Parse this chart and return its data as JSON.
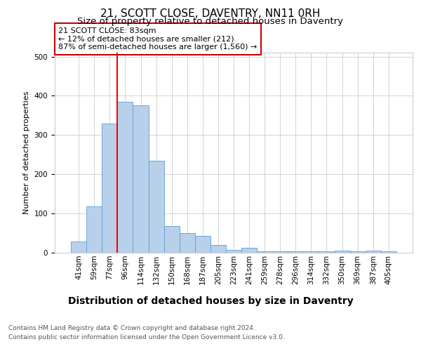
{
  "title": "21, SCOTT CLOSE, DAVENTRY, NN11 0RH",
  "subtitle": "Size of property relative to detached houses in Daventry",
  "xlabel": "Distribution of detached houses by size in Daventry",
  "ylabel": "Number of detached properties",
  "categories": [
    "41sqm",
    "59sqm",
    "77sqm",
    "96sqm",
    "114sqm",
    "132sqm",
    "150sqm",
    "168sqm",
    "187sqm",
    "205sqm",
    "223sqm",
    "241sqm",
    "259sqm",
    "278sqm",
    "296sqm",
    "314sqm",
    "332sqm",
    "350sqm",
    "369sqm",
    "387sqm",
    "405sqm"
  ],
  "values": [
    28,
    118,
    330,
    385,
    375,
    235,
    68,
    50,
    43,
    20,
    8,
    13,
    3,
    3,
    3,
    3,
    3,
    5,
    3,
    6,
    3
  ],
  "bar_color": "#b8d0ea",
  "bar_edge_color": "#5a9fd4",
  "vline_x_idx": 2.5,
  "annotation_text": "21 SCOTT CLOSE: 83sqm\n← 12% of detached houses are smaller (212)\n87% of semi-detached houses are larger (1,560) →",
  "annotation_box_color": "#ffffff",
  "annotation_box_edge": "#cc0000",
  "ylim": [
    0,
    510
  ],
  "footer_line1": "Contains HM Land Registry data © Crown copyright and database right 2024.",
  "footer_line2": "Contains public sector information licensed under the Open Government Licence v3.0.",
  "background_color": "#ffffff",
  "grid_color": "#cccccc",
  "title_fontsize": 11,
  "subtitle_fontsize": 9.5,
  "ylabel_fontsize": 8,
  "xlabel_fontsize": 10,
  "tick_fontsize": 7.5,
  "footer_fontsize": 6.5,
  "annotation_fontsize": 8
}
